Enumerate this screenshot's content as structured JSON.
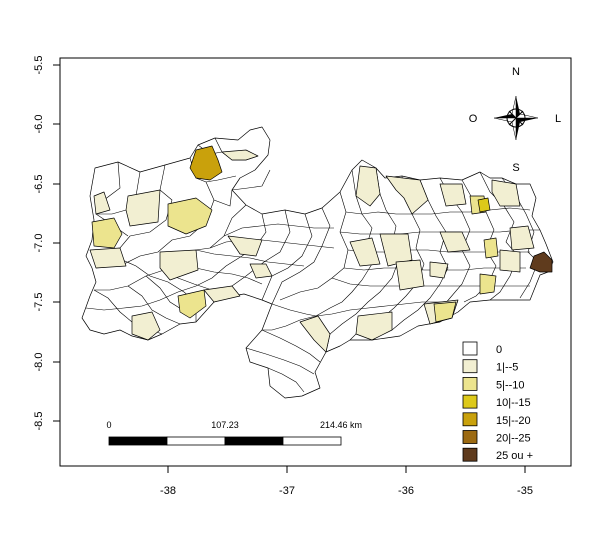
{
  "axes": {
    "x_ticks": [
      "-38",
      "-37",
      "-36",
      "-35"
    ],
    "y_ticks": [
      "-5.5",
      "-6.0",
      "-6.5",
      "-7.0",
      "-7.5",
      "-8.0",
      "-8.5"
    ]
  },
  "compass": {
    "north": "N",
    "south": "S",
    "east": "L",
    "west": "O"
  },
  "scale_bar": {
    "labels": [
      "0",
      "107.23",
      "214.46 km"
    ]
  },
  "legend": {
    "items": [
      {
        "label": "0",
        "color": "#ffffff"
      },
      {
        "label": "1|--5",
        "color": "#f2efd2"
      },
      {
        "label": "5|--10",
        "color": "#ece48e"
      },
      {
        "label": "10|--15",
        "color": "#ddc91a"
      },
      {
        "label": "15|--20",
        "color": "#c9a10c"
      },
      {
        "label": "20|--25",
        "color": "#9c6a12"
      },
      {
        "label": "25 ou +",
        "color": "#5f3b1d"
      }
    ]
  },
  "map": {
    "region": "Paraíba municipalities choropleth",
    "highlighted_classes": [
      {
        "label": "15|--20",
        "color": "#c9a10c"
      },
      {
        "label": "25 ou +",
        "color": "#5f3b1d"
      }
    ]
  }
}
